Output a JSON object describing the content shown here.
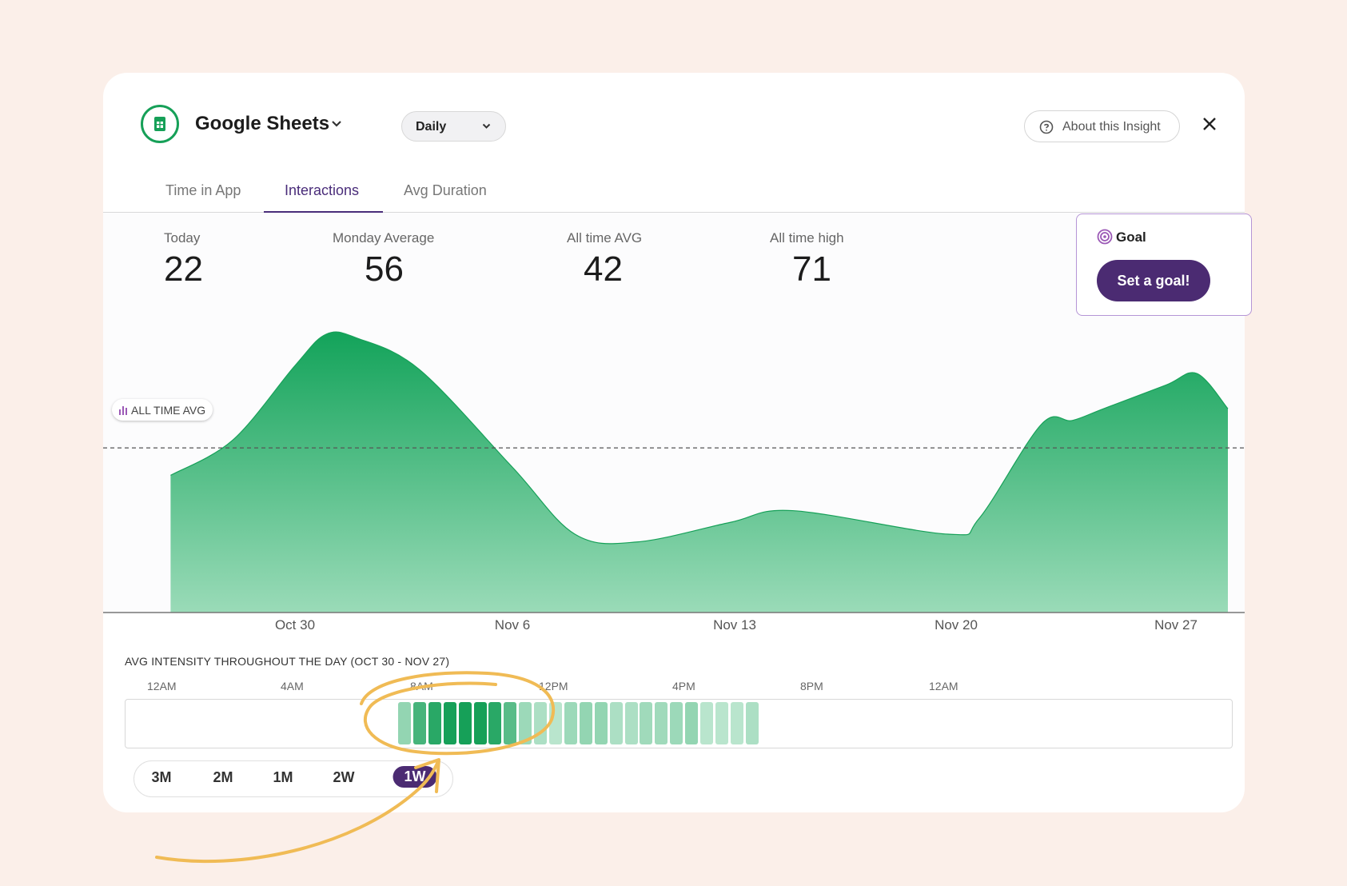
{
  "header": {
    "app_name": "Google Sheets",
    "period": "Daily",
    "about_label": "About this Insight"
  },
  "tabs": [
    {
      "label": "Time in App",
      "active": false
    },
    {
      "label": "Interactions",
      "active": true
    },
    {
      "label": "Avg Duration",
      "active": false
    }
  ],
  "stats": [
    {
      "label": "Today",
      "value": "22"
    },
    {
      "label": "Monday Average",
      "value": "56"
    },
    {
      "label": "All time AVG",
      "value": "42"
    },
    {
      "label": "All time high",
      "value": "71"
    }
  ],
  "goal": {
    "title": "Goal",
    "button": "Set a goal!"
  },
  "avg_line_label": "ALL TIME AVG",
  "colors": {
    "accent": "#4b2b72",
    "green": "#16a058",
    "background": "#fbefe9"
  },
  "chart_data": {
    "type": "area",
    "title": "Interactions",
    "x_tick_labels": [
      "Oct 30",
      "Nov 6",
      "Nov 13",
      "Nov 20",
      "Nov 27"
    ],
    "x": [
      -4,
      -2,
      0,
      1,
      2,
      4,
      7,
      9,
      11,
      14,
      16,
      21,
      22,
      24,
      25,
      26,
      28,
      29,
      30
    ],
    "values": [
      35,
      44,
      63,
      71,
      70,
      62,
      37,
      20,
      18,
      23,
      26,
      20,
      24,
      48,
      49,
      52,
      58,
      61,
      52
    ],
    "all_time_avg": 42,
    "ylim": [
      0,
      75
    ]
  },
  "intensity": {
    "title": "AVG INTENSITY THROUGHOUT THE DAY (OCT 30 - NOV 27)",
    "hour_labels": [
      "12AM",
      "4AM",
      "8AM",
      "12PM",
      "4PM",
      "8PM",
      "12AM"
    ],
    "cells": [
      0.35,
      0.75,
      0.9,
      1,
      1,
      1,
      0.9,
      0.65,
      0.3,
      0.22,
      0.15,
      0.3,
      0.35,
      0.35,
      0.22,
      0.22,
      0.28,
      0.28,
      0.3,
      0.35,
      0.15,
      0.15,
      0.15,
      0.22
    ]
  },
  "ranges": [
    {
      "label": "3M",
      "active": false
    },
    {
      "label": "2M",
      "active": false
    },
    {
      "label": "1M",
      "active": false
    },
    {
      "label": "2W",
      "active": false
    },
    {
      "label": "1W",
      "active": true
    }
  ]
}
